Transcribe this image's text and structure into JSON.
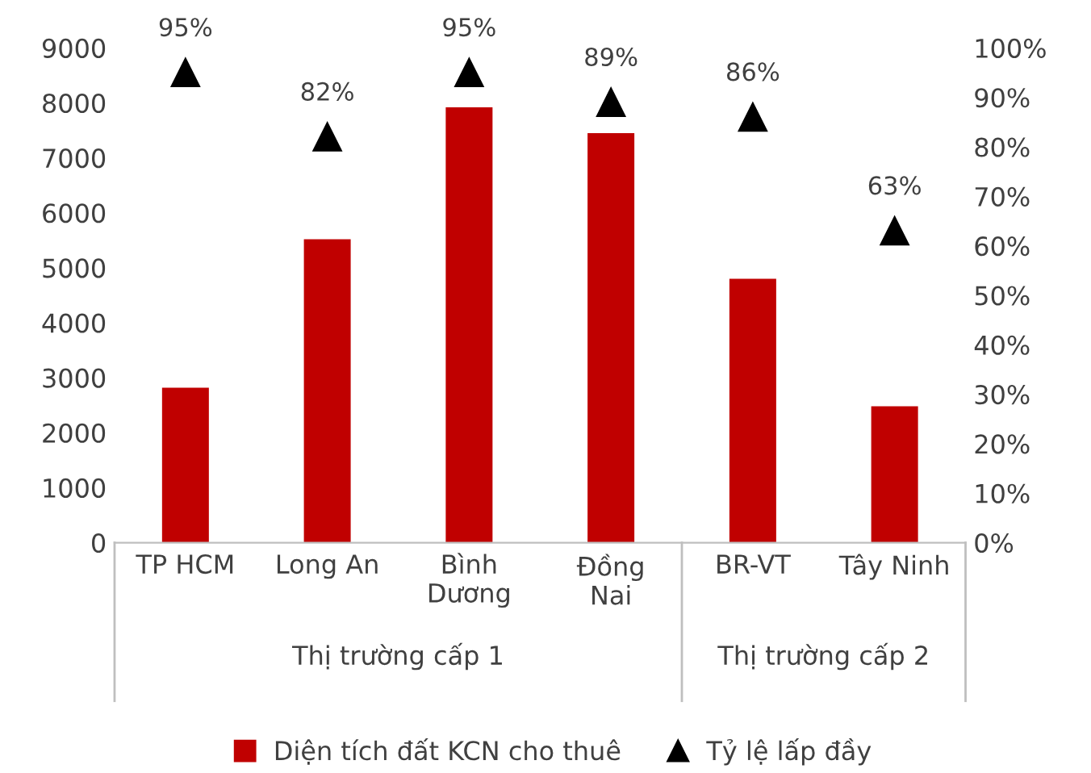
{
  "chart_data": {
    "type": "bar",
    "categories": [
      "TP HCM",
      "Long An",
      "Bình\nDương",
      "Đồng\nNai",
      "BR-VT",
      "Tây Ninh"
    ],
    "series": [
      {
        "name": "Diện tích đất KCN cho thuê",
        "color": "#c00000",
        "values": [
          2820,
          5520,
          7920,
          7450,
          4800,
          2480
        ]
      },
      {
        "name": "Tỷ lệ lấp đầy",
        "type": "scatter",
        "axis": "y2",
        "color": "#000000",
        "marker": "triangle",
        "values": [
          95,
          82,
          95,
          89,
          86,
          63
        ],
        "value_labels": [
          "95%",
          "82%",
          "95%",
          "89%",
          "86%",
          "63%"
        ]
      }
    ],
    "ylim": [
      0,
      9000
    ],
    "yticks": [
      0,
      1000,
      2000,
      3000,
      4000,
      5000,
      6000,
      7000,
      8000,
      9000
    ],
    "y2lim": [
      0,
      100
    ],
    "y2ticks": [
      {
        "value": 0,
        "label": "0%"
      },
      {
        "value": 10,
        "label": "10%"
      },
      {
        "value": 20,
        "label": "20%"
      },
      {
        "value": 30,
        "label": "30%"
      },
      {
        "value": 40,
        "label": "40%"
      },
      {
        "value": 50,
        "label": "50%"
      },
      {
        "value": 60,
        "label": "60%"
      },
      {
        "value": 70,
        "label": "70%"
      },
      {
        "value": 80,
        "label": "80%"
      },
      {
        "value": 90,
        "label": "90%"
      },
      {
        "value": 100,
        "label": "100%"
      }
    ],
    "annotations": [
      "Thị trường cấp 1",
      "Thị trường cấp 2"
    ],
    "grid": false,
    "legend": "bottom"
  }
}
